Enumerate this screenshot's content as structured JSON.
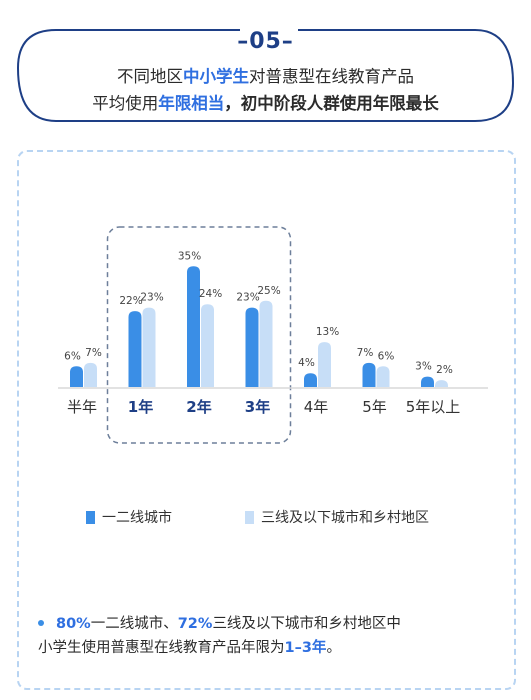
{
  "header": {
    "badge": "–05–",
    "headline_line1": [
      {
        "text": "不同地区",
        "style": "normal"
      },
      {
        "text": "中小学生",
        "style": "hl"
      },
      {
        "text": "对普惠型在线教育产品",
        "style": "normal"
      }
    ],
    "headline_line2": [
      {
        "text": "平均使用",
        "style": "normal"
      },
      {
        "text": "年限相当",
        "style": "hl"
      },
      {
        "text": "，初中阶段人群使用年限最长",
        "style": "hl2"
      }
    ]
  },
  "colors": {
    "series1": "#3a8ee6",
    "series2": "#c7def7",
    "accent": "#2f6fe0",
    "frame": "#1e3f86",
    "dashed": "#b8d4f2"
  },
  "chart_data": {
    "type": "bar",
    "categories": [
      "半年",
      "1年",
      "2年",
      "3年",
      "4年",
      "5年",
      "5年以上"
    ],
    "highlighted_categories": [
      "1年",
      "2年",
      "3年"
    ],
    "series": [
      {
        "name": "一二线城市",
        "values": [
          6,
          22,
          35,
          23,
          4,
          7,
          3
        ],
        "labels": [
          "6%",
          "22%",
          "35%",
          "23%",
          "4%",
          "7%",
          "3%"
        ]
      },
      {
        "name": "三线及以下城市和乡村地区",
        "values": [
          7,
          23,
          24,
          25,
          13,
          6,
          2
        ],
        "labels": [
          "7%",
          "23%",
          "24%",
          "25%",
          "13%",
          "6%",
          "2%"
        ]
      }
    ],
    "legend": "bottom"
  },
  "note": {
    "line1": [
      {
        "text": "80%",
        "style": "hl"
      },
      {
        "text": "一二线城市、",
        "style": "normal"
      },
      {
        "text": "72%",
        "style": "hl"
      },
      {
        "text": "三线及以下城市和乡村地区中",
        "style": "normal"
      }
    ],
    "line2": [
      {
        "text": "小学生使用普惠型在线教育产品年限为",
        "style": "normal"
      },
      {
        "text": "1–3年",
        "style": "hl"
      },
      {
        "text": "。",
        "style": "normal"
      }
    ]
  }
}
